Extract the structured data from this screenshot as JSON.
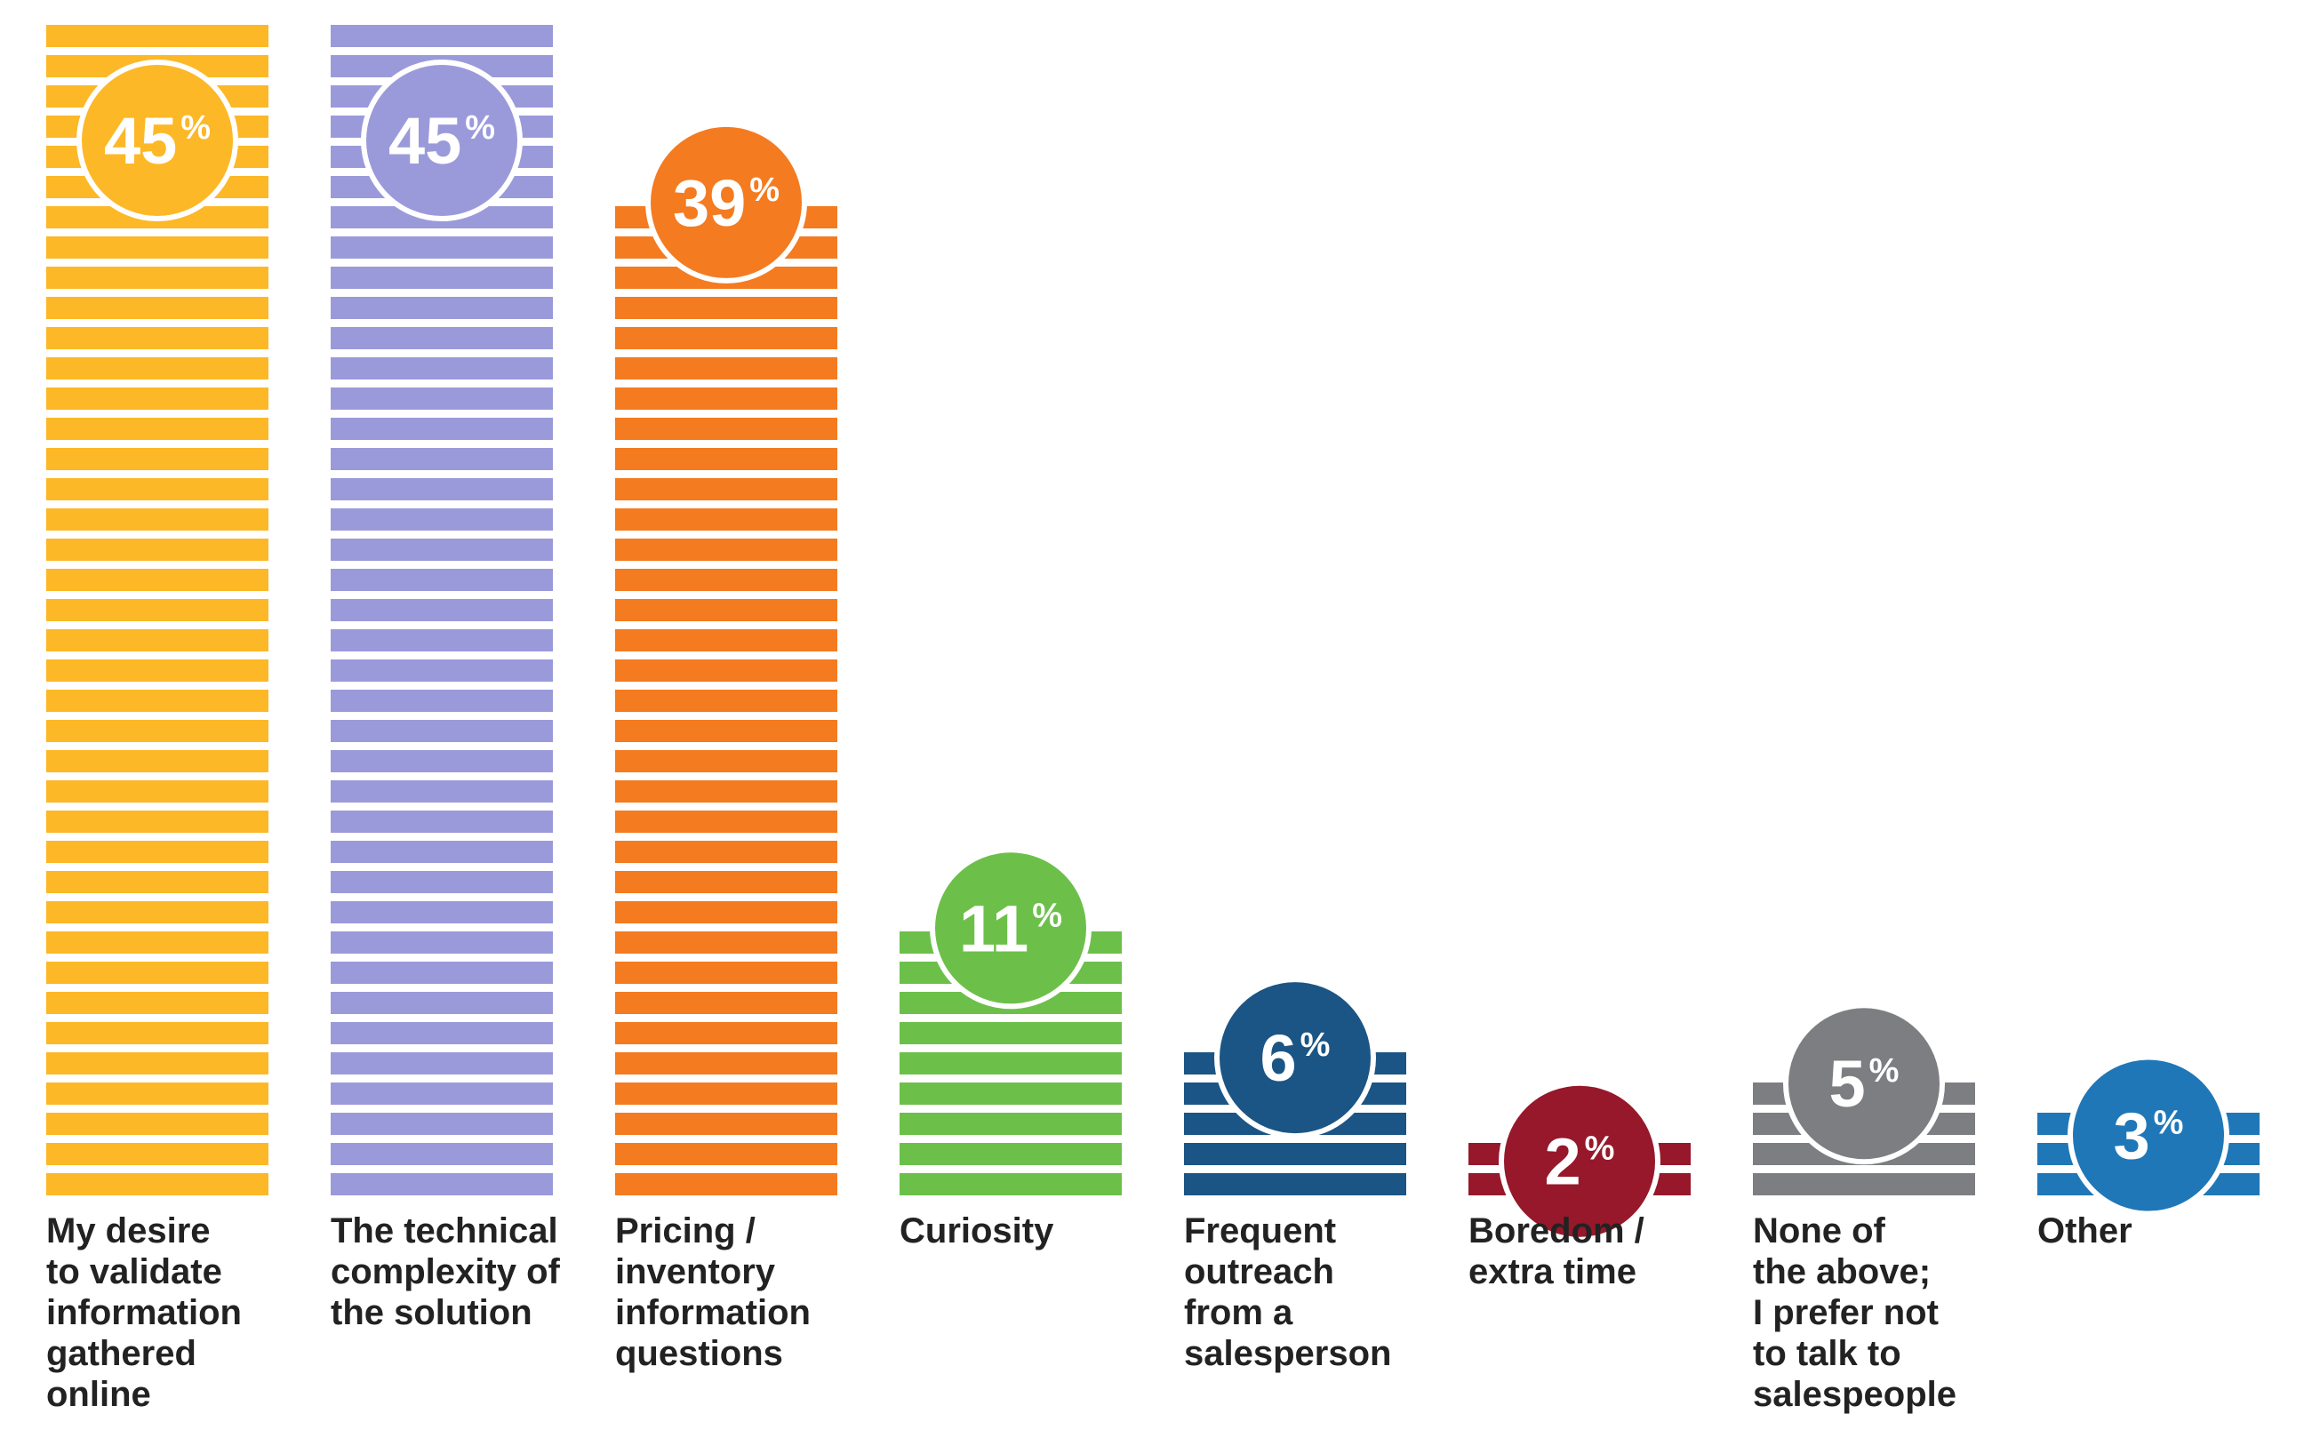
{
  "chart_data": {
    "type": "bar",
    "title": "",
    "xlabel": "",
    "ylabel": "",
    "ylim": [
      0,
      45
    ],
    "grid": false,
    "legend": "none",
    "value_suffix": "%",
    "categories": [
      [
        "My desire",
        "to validate",
        "information",
        "gathered",
        "online"
      ],
      [
        "The technical",
        "complexity of",
        "the solution"
      ],
      [
        "Pricing /",
        "inventory",
        "information",
        "questions"
      ],
      [
        "Curiosity"
      ],
      [
        "Frequent",
        "outreach",
        "from a",
        "salesperson"
      ],
      [
        "Boredom /",
        "extra time"
      ],
      [
        "None of",
        "the above;",
        "I prefer not",
        "to talk to",
        "salespeople"
      ],
      [
        "Other"
      ]
    ],
    "values": [
      45,
      45,
      39,
      11,
      6,
      2,
      5,
      3
    ],
    "colors": [
      "#FDB827",
      "#9A9ADB",
      "#F47B20",
      "#6CC04A",
      "#1B5585",
      "#96182A",
      "#7D7E82",
      "#1F77B8"
    ]
  }
}
